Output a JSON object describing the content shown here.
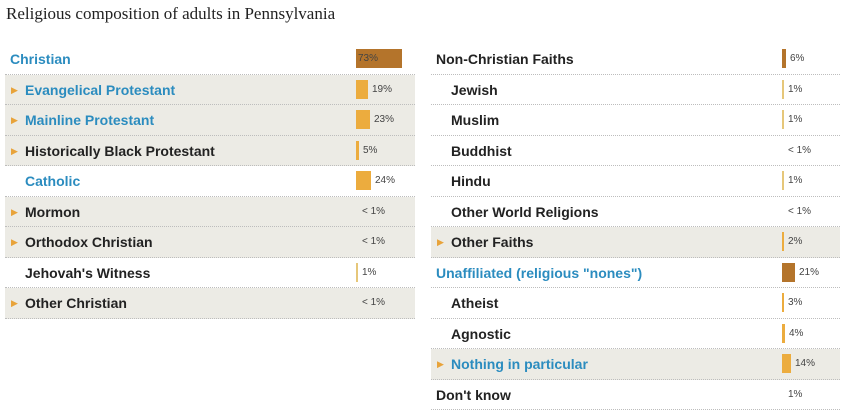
{
  "title": "Religious composition of adults in Pennsylvania",
  "colors": {
    "link_blue": "#2b8cbf",
    "text_dark": "#222222",
    "bar_top_level": "#b4742b",
    "bar_subgroup": "#ecac3e",
    "bar_light": "#e6c77a",
    "row_shade": "#ecebe5",
    "expand_arrow": "#e8a33a"
  },
  "chart_data": {
    "type": "bar",
    "orientation": "horizontal",
    "unit": "%",
    "scale_max": 100,
    "columns": [
      {
        "rows": [
          {
            "label": "Christian",
            "value": 73,
            "display": "73%",
            "level": 0,
            "expandable": false,
            "color": "blue",
            "shaded": false,
            "bar": "brown"
          },
          {
            "label": "Evangelical Protestant",
            "value": 19,
            "display": "19%",
            "level": 1,
            "expandable": true,
            "color": "blue",
            "shaded": true,
            "bar": "gold"
          },
          {
            "label": "Mainline Protestant",
            "value": 23,
            "display": "23%",
            "level": 1,
            "expandable": true,
            "color": "blue",
            "shaded": true,
            "bar": "gold"
          },
          {
            "label": "Historically Black Protestant",
            "value": 5,
            "display": "5%",
            "level": 1,
            "expandable": true,
            "color": "dark",
            "shaded": true,
            "bar": "gold"
          },
          {
            "label": "Catholic",
            "value": 24,
            "display": "24%",
            "level": 1,
            "expandable": false,
            "color": "blue",
            "shaded": false,
            "bar": "gold"
          },
          {
            "label": "Mormon",
            "value": 0.5,
            "display": "< 1%",
            "level": 1,
            "expandable": true,
            "color": "dark",
            "shaded": true,
            "bar": "none"
          },
          {
            "label": "Orthodox Christian",
            "value": 0.5,
            "display": "< 1%",
            "level": 1,
            "expandable": true,
            "color": "dark",
            "shaded": true,
            "bar": "none"
          },
          {
            "label": "Jehovah's Witness",
            "value": 1,
            "display": "1%",
            "level": 1,
            "expandable": false,
            "color": "dark",
            "shaded": false,
            "bar": "light"
          },
          {
            "label": "Other Christian",
            "value": 0.5,
            "display": "< 1%",
            "level": 1,
            "expandable": true,
            "color": "dark",
            "shaded": true,
            "bar": "none"
          }
        ]
      },
      {
        "rows": [
          {
            "label": "Non-Christian Faiths",
            "value": 6,
            "display": "6%",
            "level": 0,
            "expandable": false,
            "color": "dark",
            "shaded": false,
            "bar": "brown"
          },
          {
            "label": "Jewish",
            "value": 1,
            "display": "1%",
            "level": 1,
            "expandable": false,
            "color": "dark",
            "shaded": false,
            "bar": "light"
          },
          {
            "label": "Muslim",
            "value": 1,
            "display": "1%",
            "level": 1,
            "expandable": false,
            "color": "dark",
            "shaded": false,
            "bar": "light"
          },
          {
            "label": "Buddhist",
            "value": 0.5,
            "display": "< 1%",
            "level": 1,
            "expandable": false,
            "color": "dark",
            "shaded": false,
            "bar": "none"
          },
          {
            "label": "Hindu",
            "value": 1,
            "display": "1%",
            "level": 1,
            "expandable": false,
            "color": "dark",
            "shaded": false,
            "bar": "light"
          },
          {
            "label": "Other World Religions",
            "value": 0.5,
            "display": "< 1%",
            "level": 1,
            "expandable": false,
            "color": "dark",
            "shaded": false,
            "bar": "none"
          },
          {
            "label": "Other Faiths",
            "value": 2,
            "display": "2%",
            "level": 1,
            "expandable": true,
            "color": "dark",
            "shaded": true,
            "bar": "gold"
          },
          {
            "label": "Unaffiliated (religious \"nones\")",
            "value": 21,
            "display": "21%",
            "level": 0,
            "expandable": false,
            "color": "blue",
            "shaded": false,
            "bar": "brown"
          },
          {
            "label": "Atheist",
            "value": 3,
            "display": "3%",
            "level": 1,
            "expandable": false,
            "color": "dark",
            "shaded": false,
            "bar": "gold"
          },
          {
            "label": "Agnostic",
            "value": 4,
            "display": "4%",
            "level": 1,
            "expandable": false,
            "color": "dark",
            "shaded": false,
            "bar": "gold"
          },
          {
            "label": "Nothing in particular",
            "value": 14,
            "display": "14%",
            "level": 1,
            "expandable": true,
            "color": "blue",
            "shaded": true,
            "bar": "gold"
          },
          {
            "label": "Don't know",
            "value": 1,
            "display": "1%",
            "level": 0,
            "expandable": false,
            "color": "dark",
            "shaded": false,
            "bar": "none"
          }
        ]
      }
    ]
  }
}
